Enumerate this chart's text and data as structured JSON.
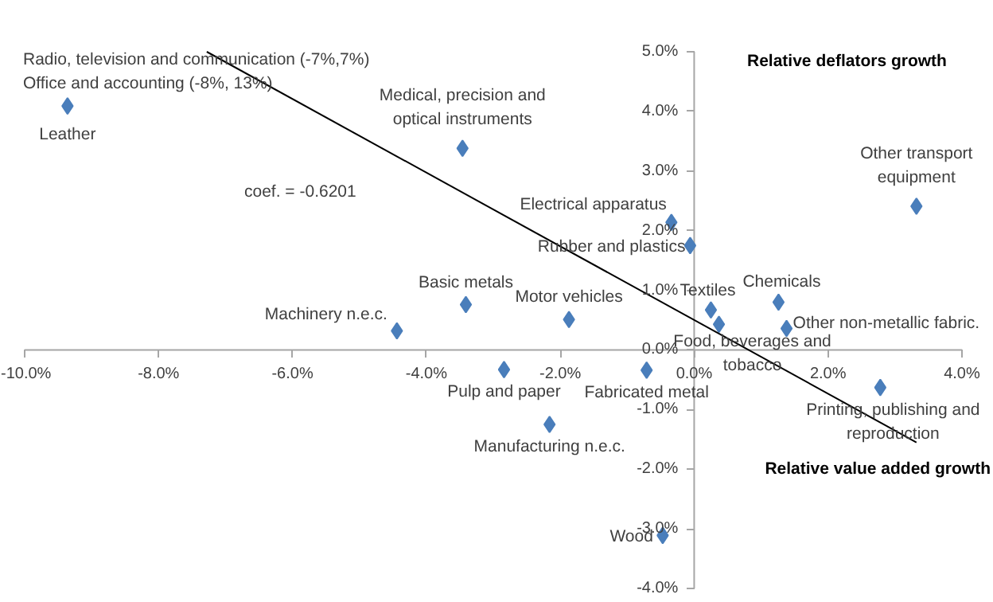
{
  "chart_data": {
    "type": "scatter",
    "xlabel": "Relative value added growth",
    "ylabel": "Relative deflators growth",
    "xlim": [
      -10,
      4
    ],
    "ylim": [
      -4,
      5
    ],
    "xticks": [
      {
        "value": -10,
        "label": "-10.0%"
      },
      {
        "value": -8,
        "label": "-8.0%"
      },
      {
        "value": -6,
        "label": "-6.0%"
      },
      {
        "value": -4,
        "label": "-4.0%"
      },
      {
        "value": -2,
        "label": "-2.0%"
      },
      {
        "value": 0,
        "label": "0.0%"
      },
      {
        "value": 2,
        "label": "2.0%"
      },
      {
        "value": 4,
        "label": "4.0%"
      }
    ],
    "yticks": [
      {
        "value": -4,
        "label": "-4.0%"
      },
      {
        "value": -3,
        "label": "-3.0%"
      },
      {
        "value": -2,
        "label": "-2.0%"
      },
      {
        "value": -1,
        "label": "-1.0%"
      },
      {
        "value": 0,
        "label": "0.0%"
      },
      {
        "value": 1,
        "label": "1.0%"
      },
      {
        "value": 2,
        "label": "2.0%"
      },
      {
        "value": 3,
        "label": "3.0%"
      },
      {
        "value": 4,
        "label": "4.0%"
      },
      {
        "value": 5,
        "label": "5.0%"
      }
    ],
    "grid": false,
    "marker": "diamond",
    "series": [
      {
        "color": "#4a7ebb",
        "x": [
          -9.36,
          -3.46,
          -3.41,
          -4.44,
          -2.84,
          -1.87,
          -2.16,
          -0.71,
          -0.47,
          0.25,
          0.37,
          1.26,
          1.38,
          2.78,
          -0.34,
          -0.06,
          3.32
        ],
        "values": [
          4.09,
          3.38,
          0.76,
          0.32,
          -0.33,
          0.51,
          -1.25,
          -0.34,
          -3.11,
          0.67,
          0.43,
          0.8,
          0.36,
          -0.63,
          2.14,
          1.75,
          2.41
        ],
        "value_labels": [
          "Leather",
          "Medical, precision and\noptical instruments",
          "Basic metals",
          "Machinery n.e.c.",
          "Pulp and paper",
          "Motor vehicles",
          "Manufacturing n.e.c.",
          "Fabricated metal",
          "Wood",
          "Textiles",
          "Food, beverages and\ntobacco",
          "Chemicals",
          "Other non-metallic fabric.",
          "Printing, publishing and\nreproduction",
          "Electrical apparatus",
          "Rubber and plastics",
          "Other transport\nequipment"
        ]
      },
      {
        "type": "line",
        "marker": "none",
        "color": "#000000",
        "x": [
          -7.28,
          3.32
        ],
        "values": [
          5.0,
          -1.55
        ]
      }
    ],
    "annotations": [
      "Radio, television and communication (-7%,7%)",
      "Office and accounting (-8%, 13%)",
      "coef. = -0.6201"
    ]
  }
}
